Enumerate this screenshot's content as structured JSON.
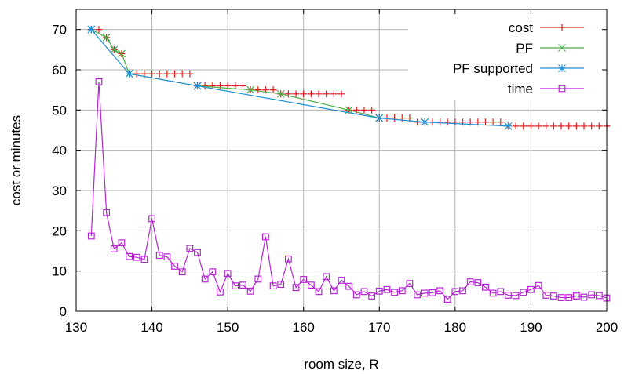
{
  "chart_data": {
    "type": "line",
    "xlabel": "room size, R",
    "ylabel": "cost or minutes",
    "xlim": [
      130,
      200
    ],
    "ylim": [
      0,
      75
    ],
    "xticks": [
      130,
      140,
      150,
      160,
      170,
      180,
      190,
      200
    ],
    "yticks": [
      0,
      10,
      20,
      30,
      40,
      50,
      60,
      70
    ],
    "grid": true,
    "legend_position": "top-right",
    "series": [
      {
        "name": "cost",
        "color": "#e41a1c",
        "marker": "plus",
        "line": false,
        "x": [
          132,
          133,
          134,
          135,
          136,
          137,
          138,
          139,
          140,
          141,
          142,
          143,
          144,
          145,
          146,
          147,
          148,
          149,
          150,
          151,
          152,
          153,
          154,
          155,
          156,
          157,
          158,
          159,
          160,
          161,
          162,
          163,
          164,
          165,
          166,
          167,
          168,
          169,
          170,
          171,
          172,
          173,
          174,
          175,
          176,
          177,
          178,
          179,
          180,
          181,
          182,
          183,
          184,
          185,
          186,
          187,
          188,
          189,
          190,
          191,
          192,
          193,
          194,
          195,
          196,
          197,
          198,
          199,
          200
        ],
        "y": [
          70,
          70,
          68,
          65,
          64,
          59,
          59,
          59,
          59,
          59,
          59,
          59,
          59,
          59,
          56,
          56,
          56,
          56,
          56,
          56,
          56,
          55,
          55,
          55,
          55,
          54,
          54,
          54,
          54,
          54,
          54,
          54,
          54,
          54,
          50,
          50,
          50,
          50,
          48,
          48,
          48,
          48,
          48,
          47,
          47,
          47,
          47,
          47,
          47,
          47,
          47,
          47,
          47,
          47,
          47,
          46,
          46,
          46,
          46,
          46,
          46,
          46,
          46,
          46,
          46,
          46,
          46,
          46,
          46
        ]
      },
      {
        "name": "PF",
        "color": "#4daf4a",
        "marker": "x",
        "line": true,
        "x": [
          132,
          134,
          135,
          136,
          137,
          146,
          153,
          157,
          166,
          170
        ],
        "y": [
          70,
          68,
          65,
          64,
          59,
          56,
          55,
          54,
          50,
          48
        ]
      },
      {
        "name": "PF supported",
        "color": "#1f8fd6",
        "marker": "star",
        "line": true,
        "x": [
          132,
          137,
          146,
          170,
          176,
          187
        ],
        "y": [
          70,
          59,
          56,
          48,
          47,
          46
        ]
      },
      {
        "name": "time",
        "color": "#b526d3",
        "marker": "square",
        "line": true,
        "x": [
          132,
          133,
          134,
          135,
          136,
          137,
          138,
          139,
          140,
          141,
          142,
          143,
          144,
          145,
          146,
          147,
          148,
          149,
          150,
          151,
          152,
          153,
          154,
          155,
          156,
          157,
          158,
          159,
          160,
          161,
          162,
          163,
          164,
          165,
          166,
          167,
          168,
          169,
          170,
          171,
          172,
          173,
          174,
          175,
          176,
          177,
          178,
          179,
          180,
          181,
          182,
          183,
          184,
          185,
          186,
          187,
          188,
          189,
          190,
          191,
          192,
          193,
          194,
          195,
          196,
          197,
          198,
          199,
          200
        ],
        "y": [
          18.7,
          57,
          24.5,
          15.5,
          17,
          13.6,
          13.4,
          12.9,
          23,
          13.9,
          13.5,
          11.2,
          9.8,
          15.6,
          14.6,
          8,
          9.8,
          4.8,
          9.4,
          6.3,
          6.5,
          5,
          8,
          18.5,
          6.3,
          6.7,
          13,
          5.9,
          7.9,
          6.5,
          4.9,
          8.6,
          5.1,
          7.7,
          6.2,
          4.1,
          4.9,
          3.8,
          5,
          5.4,
          4.7,
          5.1,
          6.9,
          4.1,
          4.5,
          4.6,
          5.1,
          3,
          4.9,
          5.1,
          7.3,
          7.1,
          6,
          4.5,
          4.9,
          4,
          3.9,
          4.7,
          5.4,
          6.4,
          4,
          3.8,
          3.4,
          3.4,
          3.8,
          3.5,
          4.1,
          3.9,
          3.3
        ]
      }
    ]
  }
}
